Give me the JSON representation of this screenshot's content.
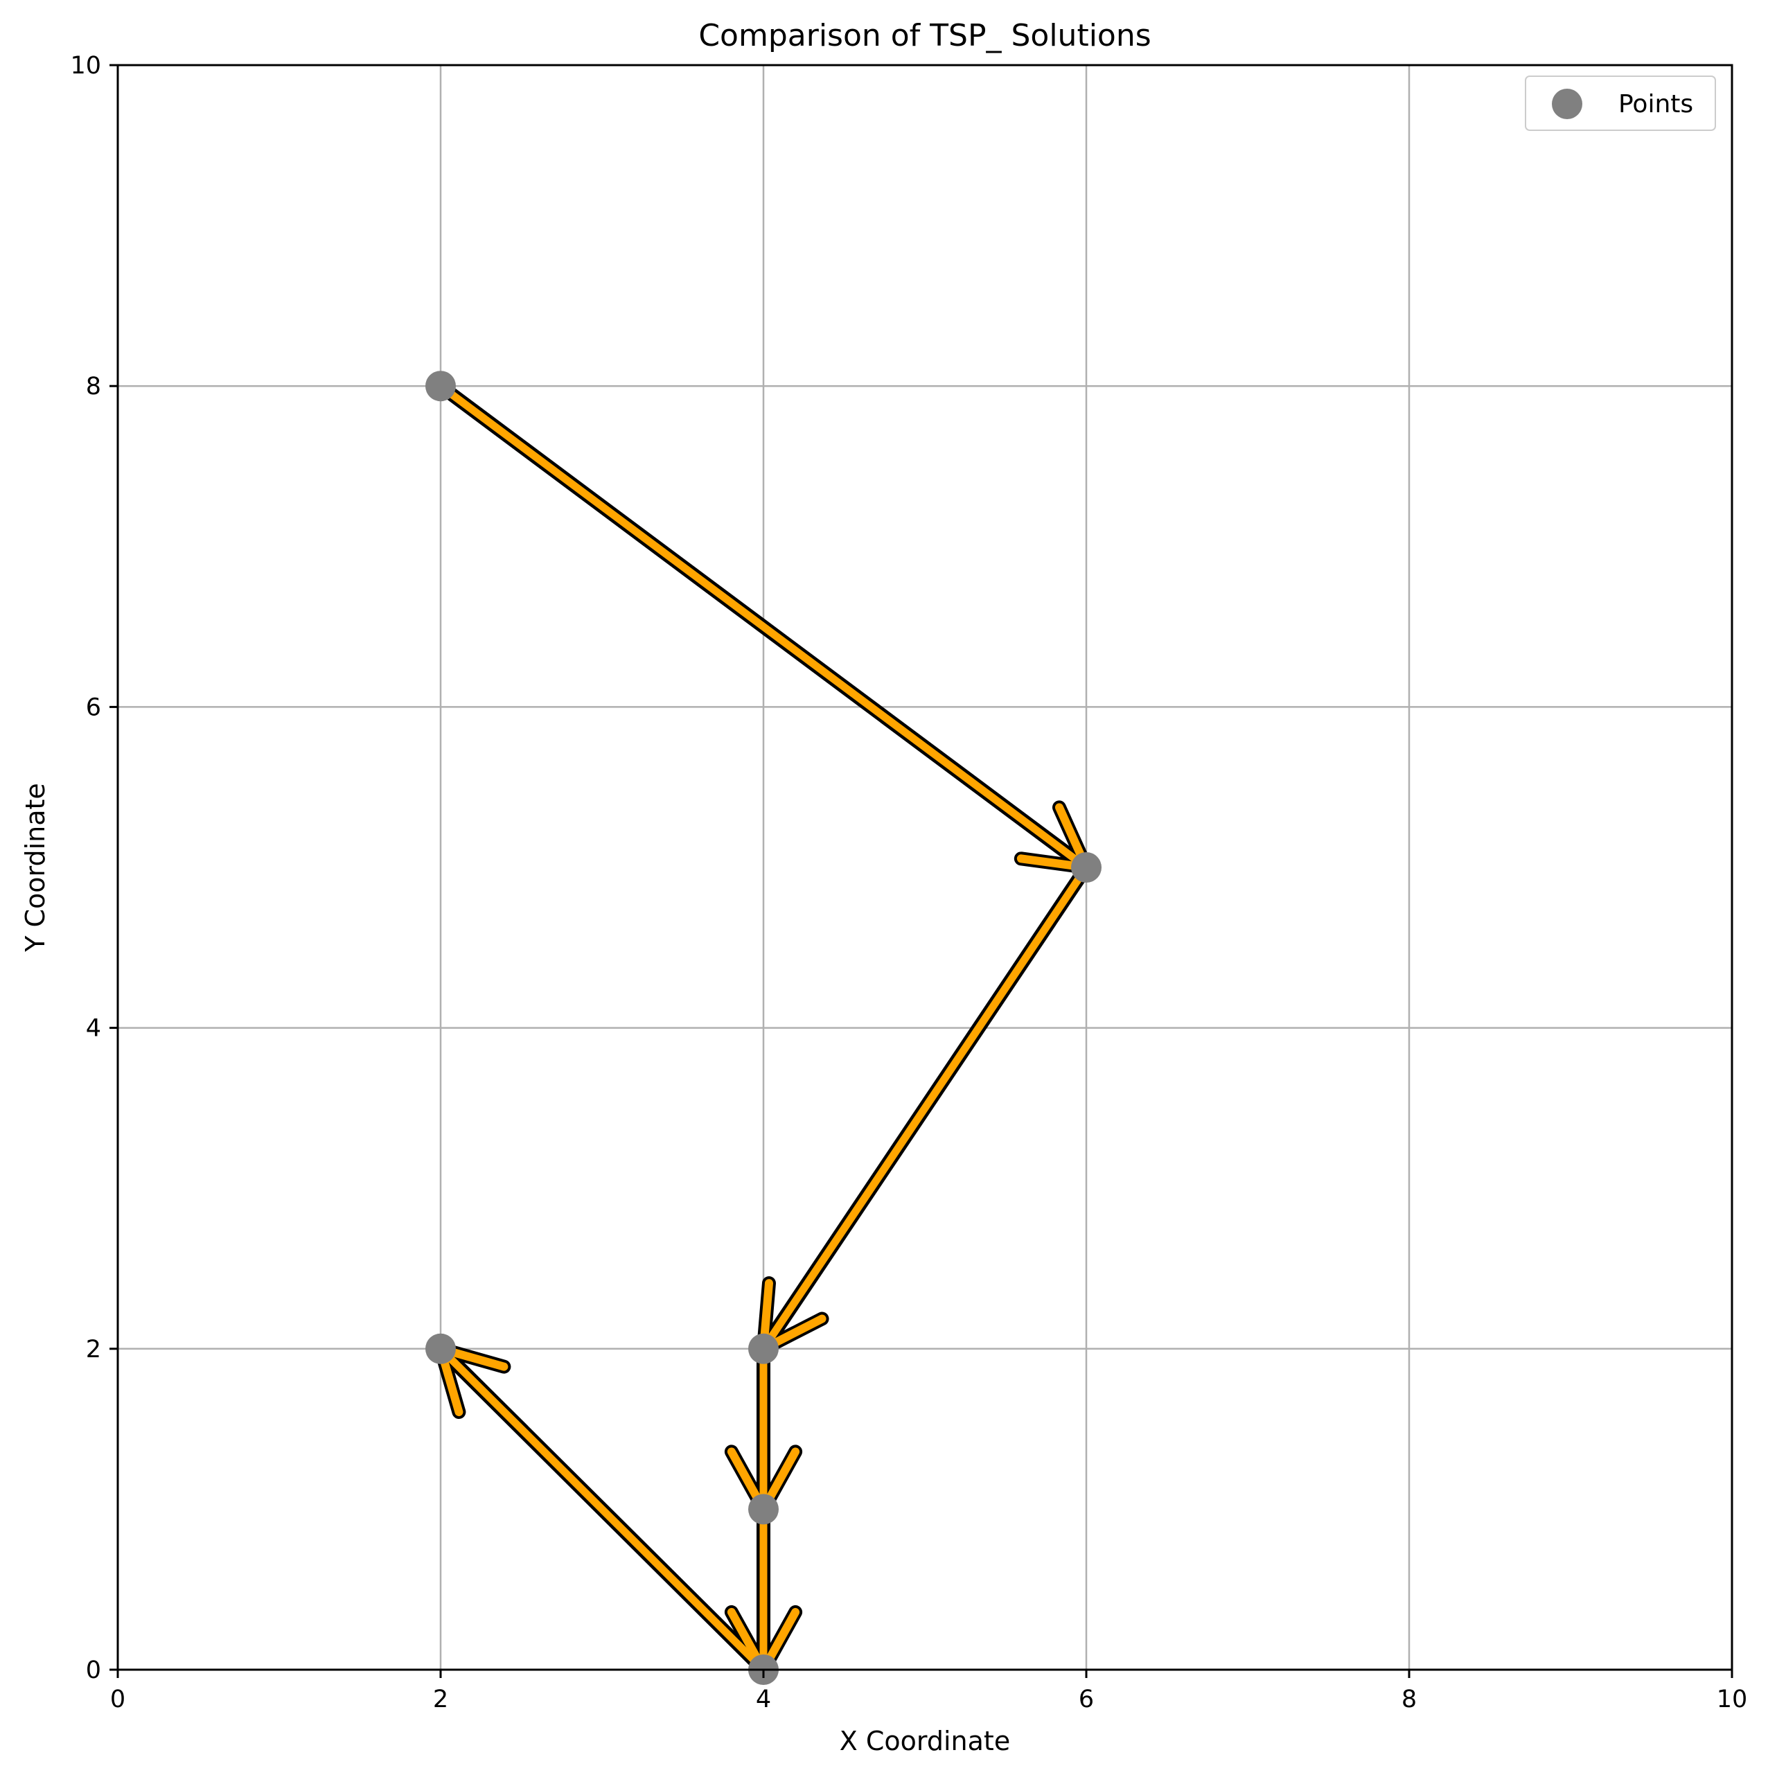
{
  "chart_data": {
    "type": "line",
    "title": "Comparison of TSP_ Solutions",
    "xlabel": "X Coordinate",
    "ylabel": "Y Coordinate",
    "xlim": [
      0,
      10
    ],
    "ylim": [
      0,
      10
    ],
    "xticks": [
      0,
      2,
      4,
      6,
      8,
      10
    ],
    "yticks": [
      0,
      2,
      4,
      6,
      8,
      10
    ],
    "grid": true,
    "legend": {
      "placement": "top-right",
      "entries": [
        "Points"
      ]
    },
    "points": [
      {
        "x": 2,
        "y": 8
      },
      {
        "x": 6,
        "y": 5
      },
      {
        "x": 4,
        "y": 2
      },
      {
        "x": 2,
        "y": 2
      },
      {
        "x": 4,
        "y": 1
      },
      {
        "x": 4,
        "y": 0
      }
    ],
    "series": [
      {
        "path": [
          {
            "x": 2,
            "y": 8
          },
          {
            "x": 6,
            "y": 5
          },
          {
            "x": 4,
            "y": 2
          },
          {
            "x": 4,
            "y": 1
          },
          {
            "x": 4,
            "y": 0
          },
          {
            "x": 2,
            "y": 2
          }
        ],
        "color": "#000000"
      },
      {
        "path": [
          {
            "x": 2,
            "y": 8
          },
          {
            "x": 6,
            "y": 5
          },
          {
            "x": 4,
            "y": 2
          },
          {
            "x": 4,
            "y": 1
          },
          {
            "x": 4,
            "y": 0
          },
          {
            "x": 2,
            "y": 2
          }
        ],
        "color": "#FFA500"
      }
    ],
    "colors": {
      "points": "#808080",
      "grid": "#b0b0b0"
    }
  }
}
